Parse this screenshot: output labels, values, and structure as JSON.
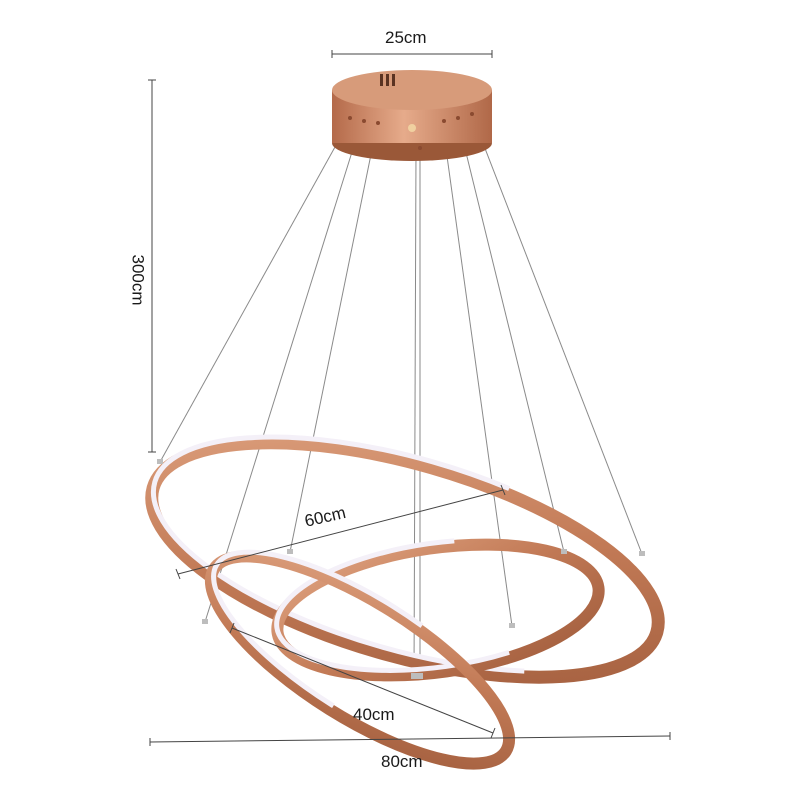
{
  "product": {
    "name": "three-ring LED pendant chandelier",
    "finish_color": "#c07a58",
    "led_color": "#f4f0f8"
  },
  "dimensions": {
    "canopy_diameter": "25cm",
    "height": "300cm",
    "ring_large": "80cm",
    "ring_medium": "60cm",
    "ring_small": "40cm"
  }
}
